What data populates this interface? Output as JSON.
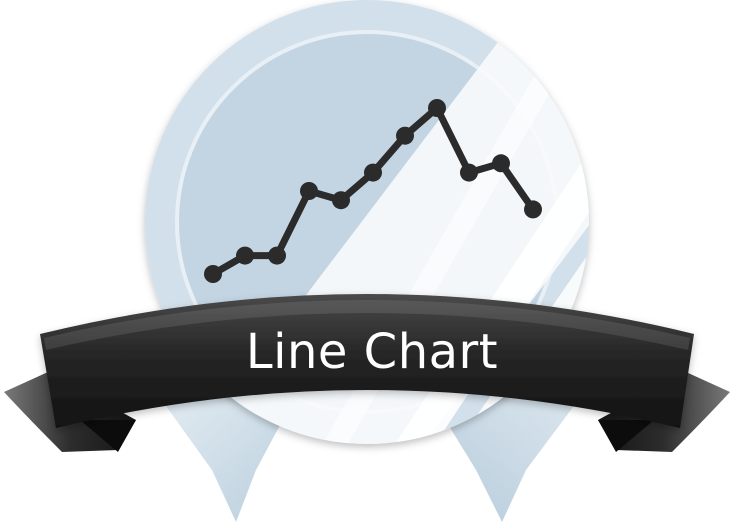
{
  "badge": {
    "title": "Line Chart",
    "icon": "line-chart-icon",
    "colors": {
      "medal_outer": "#c7d8e6",
      "medal_inner": "#c3d5e3",
      "medal_rim": "#e9f0f5",
      "medal_light": "#f6f9fb",
      "shine": "#ffffff",
      "chart_line": "#2b2b2b",
      "ribbon_dark": "#1e1e1e",
      "ribbon_mid": "#3a3a3a",
      "ribbon_light": "#6a6a6a",
      "title_text": "#ffffff"
    }
  },
  "chart_data": {
    "type": "line",
    "x": [
      1,
      2,
      3,
      4,
      5,
      6,
      7,
      8,
      9,
      10,
      11
    ],
    "values": [
      2,
      3,
      3,
      6.5,
      6,
      7.5,
      9.5,
      11,
      7.5,
      8,
      5.5
    ]
  }
}
